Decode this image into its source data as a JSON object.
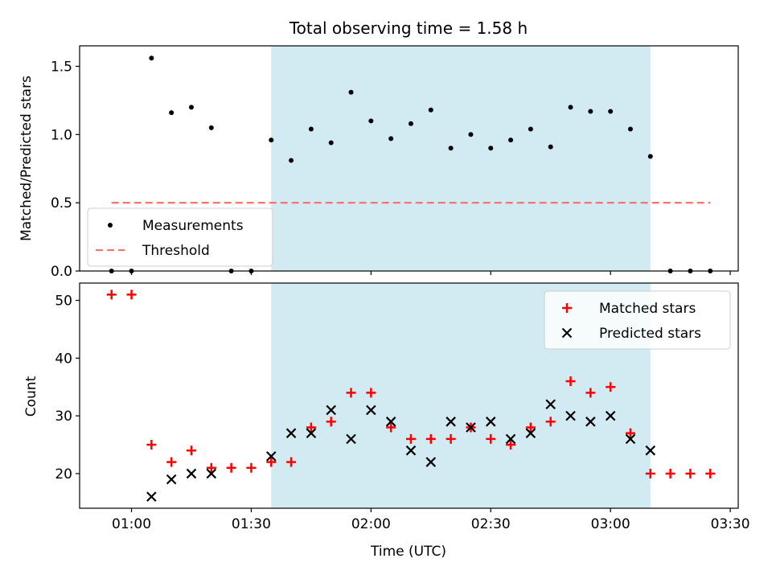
{
  "chart_data": [
    {
      "type": "scatter",
      "title": "Total observing time = 1.58 h",
      "xlabel": "",
      "ylabel": "Matched/Predicted stars",
      "ylim": [
        0,
        1.65
      ],
      "y_ticks": [
        "0.0",
        "0.5",
        "1.0",
        "1.5"
      ],
      "shaded_region": {
        "x_start": "01:35",
        "x_end": "03:10",
        "color": "#add8e6"
      },
      "legend_position": "lower-left",
      "series": [
        {
          "name": "Measurements",
          "marker": "dot",
          "color": "#000000",
          "points": [
            {
              "x": "00:55",
              "y": 0.0
            },
            {
              "x": "01:00",
              "y": 0.0
            },
            {
              "x": "01:05",
              "y": 1.56
            },
            {
              "x": "01:10",
              "y": 1.16
            },
            {
              "x": "01:15",
              "y": 1.2
            },
            {
              "x": "01:20",
              "y": 1.05
            },
            {
              "x": "01:25",
              "y": 0.0
            },
            {
              "x": "01:30",
              "y": 0.0
            },
            {
              "x": "01:35",
              "y": 0.96
            },
            {
              "x": "01:40",
              "y": 0.81
            },
            {
              "x": "01:45",
              "y": 1.04
            },
            {
              "x": "01:50",
              "y": 0.94
            },
            {
              "x": "01:55",
              "y": 1.31
            },
            {
              "x": "02:00",
              "y": 1.1
            },
            {
              "x": "02:05",
              "y": 0.97
            },
            {
              "x": "02:10",
              "y": 1.08
            },
            {
              "x": "02:15",
              "y": 1.18
            },
            {
              "x": "02:20",
              "y": 0.9
            },
            {
              "x": "02:25",
              "y": 1.0
            },
            {
              "x": "02:30",
              "y": 0.9
            },
            {
              "x": "02:35",
              "y": 0.96
            },
            {
              "x": "02:40",
              "y": 1.04
            },
            {
              "x": "02:45",
              "y": 0.91
            },
            {
              "x": "02:50",
              "y": 1.2
            },
            {
              "x": "02:55",
              "y": 1.17
            },
            {
              "x": "03:00",
              "y": 1.17
            },
            {
              "x": "03:05",
              "y": 1.04
            },
            {
              "x": "03:10",
              "y": 0.84
            },
            {
              "x": "03:15",
              "y": 0.0
            },
            {
              "x": "03:20",
              "y": 0.0
            },
            {
              "x": "03:25",
              "y": 0.0
            }
          ]
        },
        {
          "name": "Threshold",
          "marker": "dashed-line",
          "color": "#ff7070",
          "points": [
            {
              "x": "00:55",
              "y": 0.5
            },
            {
              "x": "03:25",
              "y": 0.5
            }
          ]
        }
      ]
    },
    {
      "type": "scatter",
      "title": "",
      "xlabel": "Time (UTC)",
      "ylabel": "Count",
      "ylim": [
        14,
        53
      ],
      "y_ticks": [
        "20",
        "30",
        "40",
        "50"
      ],
      "x_ticks": [
        "01:00",
        "01:30",
        "02:00",
        "02:30",
        "03:00",
        "03:30"
      ],
      "xlim": [
        "00:47",
        "03:32"
      ],
      "shaded_region": {
        "x_start": "01:35",
        "x_end": "03:10",
        "color": "#add8e6"
      },
      "legend_position": "upper-right",
      "series": [
        {
          "name": "Matched stars",
          "marker": "plus",
          "color": "#ff0000",
          "points": [
            {
              "x": "00:55",
              "y": 51
            },
            {
              "x": "01:00",
              "y": 51
            },
            {
              "x": "01:05",
              "y": 25
            },
            {
              "x": "01:10",
              "y": 22
            },
            {
              "x": "01:15",
              "y": 24
            },
            {
              "x": "01:20",
              "y": 21
            },
            {
              "x": "01:25",
              "y": 21
            },
            {
              "x": "01:30",
              "y": 21
            },
            {
              "x": "01:35",
              "y": 22
            },
            {
              "x": "01:40",
              "y": 22
            },
            {
              "x": "01:45",
              "y": 28
            },
            {
              "x": "01:50",
              "y": 29
            },
            {
              "x": "01:55",
              "y": 34
            },
            {
              "x": "02:00",
              "y": 34
            },
            {
              "x": "02:05",
              "y": 28
            },
            {
              "x": "02:10",
              "y": 26
            },
            {
              "x": "02:15",
              "y": 26
            },
            {
              "x": "02:20",
              "y": 26
            },
            {
              "x": "02:25",
              "y": 28
            },
            {
              "x": "02:30",
              "y": 26
            },
            {
              "x": "02:35",
              "y": 25
            },
            {
              "x": "02:40",
              "y": 28
            },
            {
              "x": "02:45",
              "y": 29
            },
            {
              "x": "02:50",
              "y": 36
            },
            {
              "x": "02:55",
              "y": 34
            },
            {
              "x": "03:00",
              "y": 35
            },
            {
              "x": "03:05",
              "y": 27
            },
            {
              "x": "03:10",
              "y": 20
            },
            {
              "x": "03:15",
              "y": 20
            },
            {
              "x": "03:20",
              "y": 20
            },
            {
              "x": "03:25",
              "y": 20
            }
          ]
        },
        {
          "name": "Predicted stars",
          "marker": "x",
          "color": "#000000",
          "points": [
            {
              "x": "01:05",
              "y": 16
            },
            {
              "x": "01:10",
              "y": 19
            },
            {
              "x": "01:15",
              "y": 20
            },
            {
              "x": "01:20",
              "y": 20
            },
            {
              "x": "01:35",
              "y": 23
            },
            {
              "x": "01:40",
              "y": 27
            },
            {
              "x": "01:45",
              "y": 27
            },
            {
              "x": "01:50",
              "y": 31
            },
            {
              "x": "01:55",
              "y": 26
            },
            {
              "x": "02:00",
              "y": 31
            },
            {
              "x": "02:05",
              "y": 29
            },
            {
              "x": "02:10",
              "y": 24
            },
            {
              "x": "02:15",
              "y": 22
            },
            {
              "x": "02:20",
              "y": 29
            },
            {
              "x": "02:25",
              "y": 28
            },
            {
              "x": "02:30",
              "y": 29
            },
            {
              "x": "02:35",
              "y": 26
            },
            {
              "x": "02:40",
              "y": 27
            },
            {
              "x": "02:45",
              "y": 32
            },
            {
              "x": "02:50",
              "y": 30
            },
            {
              "x": "02:55",
              "y": 29
            },
            {
              "x": "03:00",
              "y": 30
            },
            {
              "x": "03:05",
              "y": 26
            },
            {
              "x": "03:10",
              "y": 24
            }
          ]
        }
      ]
    }
  ]
}
